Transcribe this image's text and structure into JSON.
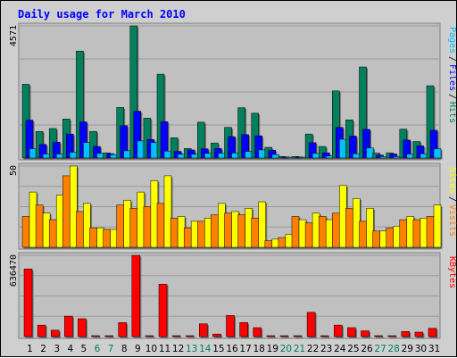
{
  "title": "Daily usage for March 2010",
  "colors": {
    "title": "#0000ff",
    "frame_bg": "#cfcfcf",
    "panel_bg": "#c0c0c0",
    "grid": "#9a9a9a",
    "hits": "#00805c",
    "files": "#0000ff",
    "pages": "#00c0ff",
    "visits": "#ff8000",
    "sites": "#ffff00",
    "kbytes": "#ff0000",
    "weekend_label": "#00805c",
    "weekday_label": "#000000",
    "legend_separator": "#000000"
  },
  "chart_data": [
    {
      "type": "bar",
      "panel": "top",
      "ymax_label": "4571",
      "ylim": [
        0,
        4571
      ],
      "legend": [
        "Pages",
        "Files",
        "Hits"
      ],
      "categories": [
        "1",
        "2",
        "3",
        "4",
        "5",
        "6",
        "7",
        "8",
        "9",
        "10",
        "11",
        "12",
        "13",
        "14",
        "15",
        "16",
        "17",
        "18",
        "19",
        "20",
        "21",
        "22",
        "23",
        "24",
        "25",
        "26",
        "27",
        "28",
        "29",
        "30",
        "31"
      ],
      "weekend_days": [
        6,
        7,
        13,
        14,
        20,
        21,
        27,
        28
      ],
      "series": [
        {
          "name": "Hits",
          "values": [
            2550,
            920,
            1020,
            1350,
            3700,
            920,
            180,
            1750,
            4571,
            1380,
            2900,
            700,
            330,
            1240,
            520,
            1060,
            1740,
            1550,
            370,
            50,
            50,
            830,
            400,
            2320,
            1320,
            3150,
            170,
            180,
            1000,
            570,
            2500
          ]
        },
        {
          "name": "Files",
          "values": [
            1310,
            470,
            550,
            830,
            1250,
            400,
            150,
            1120,
            1620,
            640,
            1260,
            230,
            280,
            320,
            330,
            740,
            810,
            770,
            270,
            40,
            40,
            530,
            180,
            1060,
            760,
            990,
            100,
            140,
            620,
            420,
            960
          ]
        },
        {
          "name": "Pages",
          "values": [
            320,
            140,
            140,
            200,
            540,
            160,
            120,
            250,
            590,
            540,
            240,
            130,
            130,
            160,
            170,
            170,
            230,
            280,
            120,
            25,
            25,
            160,
            70,
            650,
            150,
            350,
            50,
            50,
            140,
            150,
            320
          ]
        }
      ]
    },
    {
      "type": "bar",
      "panel": "middle",
      "ymax_label": "50",
      "ylim": [
        0,
        50
      ],
      "legend": [
        "Sites",
        "Visits"
      ],
      "categories": [
        "1",
        "2",
        "3",
        "4",
        "5",
        "6",
        "7",
        "8",
        "9",
        "10",
        "11",
        "12",
        "13",
        "14",
        "15",
        "16",
        "17",
        "18",
        "19",
        "20",
        "21",
        "22",
        "23",
        "24",
        "25",
        "26",
        "27",
        "28",
        "29",
        "30",
        "31"
      ],
      "weekend_days": [
        6,
        7,
        13,
        14,
        20,
        21,
        27,
        28
      ],
      "series": [
        {
          "name": "Visits",
          "values": [
            19,
            26,
            17,
            44,
            22,
            12,
            11,
            26,
            24,
            25,
            27,
            18,
            12,
            16,
            20,
            21,
            20,
            18,
            4,
            6,
            19,
            15,
            19,
            21,
            24,
            16,
            10,
            12,
            17,
            17,
            19
          ]
        },
        {
          "name": "Sites",
          "values": [
            34,
            21,
            32,
            50,
            27,
            12,
            11,
            29,
            34,
            41,
            44,
            19,
            16,
            18,
            27,
            22,
            24,
            28,
            5,
            8,
            17,
            21,
            17,
            38,
            30,
            24,
            10,
            13,
            19,
            18,
            26
          ]
        }
      ]
    },
    {
      "type": "bar",
      "panel": "bottom",
      "ymax_label": "636470",
      "ylim": [
        0,
        636470
      ],
      "legend": [
        "KBytes"
      ],
      "categories": [
        "1",
        "2",
        "3",
        "4",
        "5",
        "6",
        "7",
        "8",
        "9",
        "10",
        "11",
        "12",
        "13",
        "14",
        "15",
        "16",
        "17",
        "18",
        "19",
        "20",
        "21",
        "22",
        "23",
        "24",
        "25",
        "26",
        "27",
        "28",
        "29",
        "30",
        "31"
      ],
      "weekend_days": [
        6,
        7,
        13,
        14,
        20,
        21,
        27,
        28
      ],
      "series": [
        {
          "name": "KBytes",
          "values": [
            530000,
            90000,
            50000,
            160000,
            140000,
            3000,
            3000,
            110000,
            636470,
            7000,
            410000,
            5000,
            4000,
            100000,
            20000,
            165000,
            110000,
            70000,
            4000,
            4000,
            6000,
            190000,
            5000,
            90000,
            70000,
            45000,
            3000,
            4000,
            40000,
            35000,
            65000
          ]
        }
      ]
    }
  ]
}
